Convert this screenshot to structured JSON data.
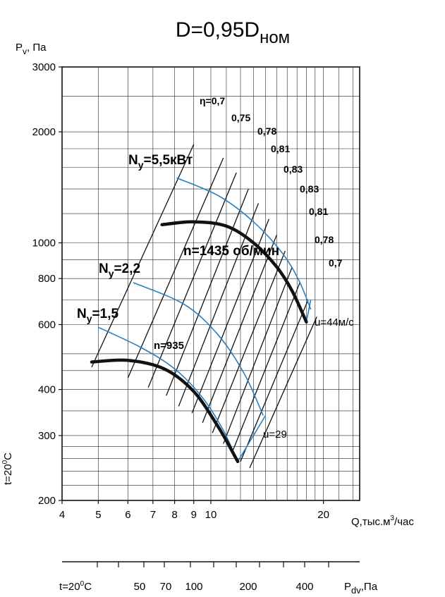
{
  "chart_data": {
    "type": "line",
    "title": "D=0,95D",
    "title_sub": "ном",
    "x_scale": "log",
    "y_scale": "log",
    "xlim": [
      4,
      25
    ],
    "ylim": [
      200,
      3000
    ],
    "xlabel": "Q,тыс.м",
    "xlabel_sup": "3",
    "xlabel_tail": "/час",
    "ylabel": "P",
    "ylabel_sub": "v",
    "ylabel_tail": ", Па",
    "x_ticks": [
      4,
      5,
      6,
      7,
      8,
      9,
      10,
      20
    ],
    "x_tick_labels": [
      "4",
      "5",
      "6",
      "7",
      "8",
      "9",
      "10",
      "20"
    ],
    "y_ticks": [
      200,
      300,
      400,
      600,
      800,
      1000,
      2000,
      3000
    ],
    "y_tick_labels": [
      "200",
      "300",
      "400",
      "600",
      "800",
      "1000",
      "2000",
      "3000"
    ],
    "temp_left": "t=20",
    "temp_left_sup": "0",
    "temp_left_tail": "C",
    "pd_axis": {
      "label": "P",
      "label_sub": "dv",
      "label_tail": ",Па",
      "temp": "t=20",
      "temp_sup": "0",
      "temp_tail": "C",
      "tick_labels": [
        "50",
        "70",
        "100",
        "200",
        "400"
      ]
    },
    "series": [
      {
        "name": "n=1435 об/мин",
        "x": [
          7.4,
          9,
          11,
          13,
          15,
          16.5,
          18
        ],
        "y": [
          1120,
          1140,
          1110,
          1000,
          860,
          740,
          610
        ]
      },
      {
        "name": "n=935",
        "x": [
          4.8,
          6,
          7.5,
          9,
          10.5,
          11.8
        ],
        "y": [
          475,
          480,
          455,
          395,
          315,
          255
        ]
      }
    ],
    "power_curves": [
      {
        "label": "N",
        "label_sub": "y",
        "label_tail": "=5,5кВт",
        "x": [
          8.1,
          10.5,
          13,
          15.5,
          17.2,
          18.5
        ],
        "y": [
          1500,
          1340,
          1140,
          940,
          790,
          660
        ]
      },
      {
        "label": "N",
        "label_sub": "y",
        "label_tail": "=2,2",
        "x": [
          6.2,
          8.5,
          10.5,
          12.3,
          13.8
        ],
        "y": [
          780,
          680,
          560,
          440,
          340
        ]
      },
      {
        "label": "N",
        "label_sub": "y",
        "label_tail": "=1,5",
        "x": [
          5,
          6.5,
          8,
          9.5,
          10.8,
          11.8
        ],
        "y": [
          590,
          520,
          455,
          380,
          310,
          255
        ]
      }
    ],
    "velocity_lines": [
      {
        "label": "u=44м/с",
        "x": [
          18,
          18.5
        ],
        "y": [
          610,
          700
        ]
      },
      {
        "label": "u=29",
        "x": [
          11.8,
          14
        ],
        "y": [
          255,
          340
        ]
      }
    ],
    "efficiency_labels": [
      "η=0,7",
      "0,75",
      "0,78",
      "0,81",
      "0,83",
      "0,83",
      "0,81",
      "0,78",
      "0,7"
    ],
    "rays": [
      {
        "x": [
          4.8,
          9.0
        ],
        "y": [
          460,
          1850
        ]
      },
      {
        "x": [
          6.0,
          10.8
        ],
        "y": [
          430,
          1700
        ]
      },
      {
        "x": [
          6.8,
          11.7
        ],
        "y": [
          405,
          1550
        ]
      },
      {
        "x": [
          7.6,
          12.6
        ],
        "y": [
          385,
          1400
        ]
      },
      {
        "x": [
          8.2,
          13.4
        ],
        "y": [
          360,
          1280
        ]
      },
      {
        "x": [
          8.9,
          14.3
        ],
        "y": [
          345,
          1160
        ]
      },
      {
        "x": [
          9.5,
          15.0
        ],
        "y": [
          325,
          1050
        ]
      },
      {
        "x": [
          10.1,
          15.8
        ],
        "y": [
          305,
          950
        ]
      },
      {
        "x": [
          10.8,
          16.5
        ],
        "y": [
          285,
          860
        ]
      },
      {
        "x": [
          11.4,
          17.3
        ],
        "y": [
          270,
          780
        ]
      },
      {
        "x": [
          12.0,
          18.2
        ],
        "y": [
          255,
          700
        ]
      },
      {
        "x": [
          12.7,
          19.2
        ],
        "y": [
          245,
          630
        ]
      }
    ],
    "colors": {
      "blue": "#2a7fc0",
      "black": "#111111"
    }
  }
}
